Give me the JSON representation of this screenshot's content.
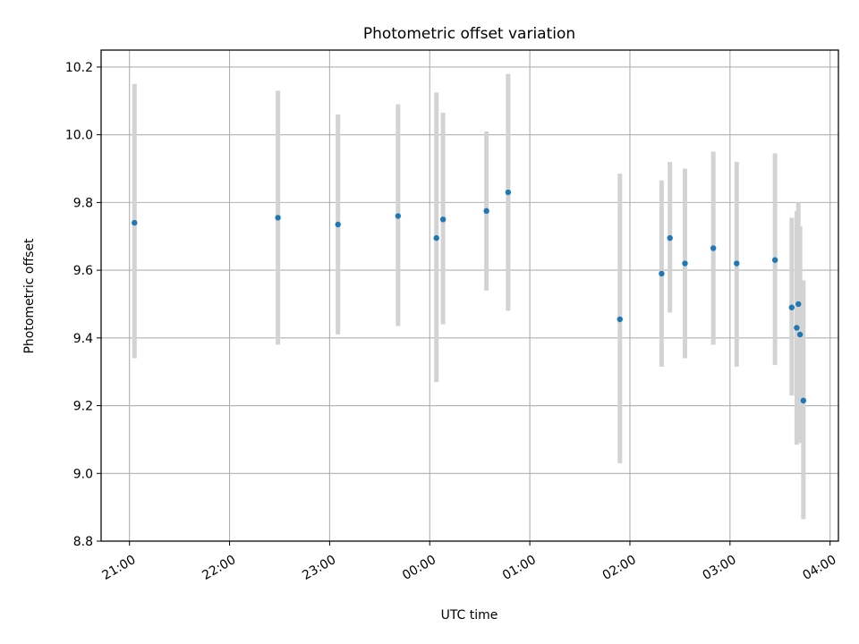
{
  "chart_data": {
    "type": "scatter",
    "title": "Photometric offset variation",
    "xlabel": "UTC time",
    "ylabel": "Photometric offset",
    "x_tick_labels": [
      "21:00",
      "22:00",
      "23:00",
      "00:00",
      "01:00",
      "02:00",
      "03:00",
      "04:00"
    ],
    "y_tick_labels": [
      "8.8",
      "9.0",
      "9.2",
      "9.4",
      "9.6",
      "9.8",
      "10.0",
      "10.2"
    ],
    "xlim": [
      "20:43",
      "04:05"
    ],
    "ylim": [
      8.8,
      10.25
    ],
    "grid": true,
    "marker_color": "#1f77b4",
    "errorbar_color": "#d3d3d3",
    "points": [
      {
        "t": "21:03",
        "y": 9.74,
        "lo": 9.34,
        "hi": 10.15
      },
      {
        "t": "22:29",
        "y": 9.755,
        "lo": 9.38,
        "hi": 10.13
      },
      {
        "t": "23:05",
        "y": 9.735,
        "lo": 9.41,
        "hi": 10.06
      },
      {
        "t": "23:41",
        "y": 9.76,
        "lo": 9.435,
        "hi": 10.09
      },
      {
        "t": "00:04",
        "y": 9.695,
        "lo": 9.27,
        "hi": 10.125
      },
      {
        "t": "00:08",
        "y": 9.75,
        "lo": 9.44,
        "hi": 10.065
      },
      {
        "t": "00:34",
        "y": 9.775,
        "lo": 9.54,
        "hi": 10.01
      },
      {
        "t": "00:47",
        "y": 9.83,
        "lo": 9.48,
        "hi": 10.18
      },
      {
        "t": "01:54",
        "y": 9.455,
        "lo": 9.03,
        "hi": 9.885
      },
      {
        "t": "02:19",
        "y": 9.59,
        "lo": 9.315,
        "hi": 9.865
      },
      {
        "t": "02:24",
        "y": 9.695,
        "lo": 9.475,
        "hi": 9.92
      },
      {
        "t": "02:33",
        "y": 9.62,
        "lo": 9.34,
        "hi": 9.9
      },
      {
        "t": "02:50",
        "y": 9.665,
        "lo": 9.38,
        "hi": 9.95
      },
      {
        "t": "03:04",
        "y": 9.62,
        "lo": 9.315,
        "hi": 9.92
      },
      {
        "t": "03:27",
        "y": 9.63,
        "lo": 9.32,
        "hi": 9.945
      },
      {
        "t": "03:37",
        "y": 9.49,
        "lo": 9.23,
        "hi": 9.755
      },
      {
        "t": "03:40",
        "y": 9.43,
        "lo": 9.085,
        "hi": 9.775
      },
      {
        "t": "03:41",
        "y": 9.5,
        "lo": 9.205,
        "hi": 9.8
      },
      {
        "t": "03:42",
        "y": 9.41,
        "lo": 9.09,
        "hi": 9.73
      },
      {
        "t": "03:44",
        "y": 9.215,
        "lo": 8.865,
        "hi": 9.57
      }
    ]
  }
}
